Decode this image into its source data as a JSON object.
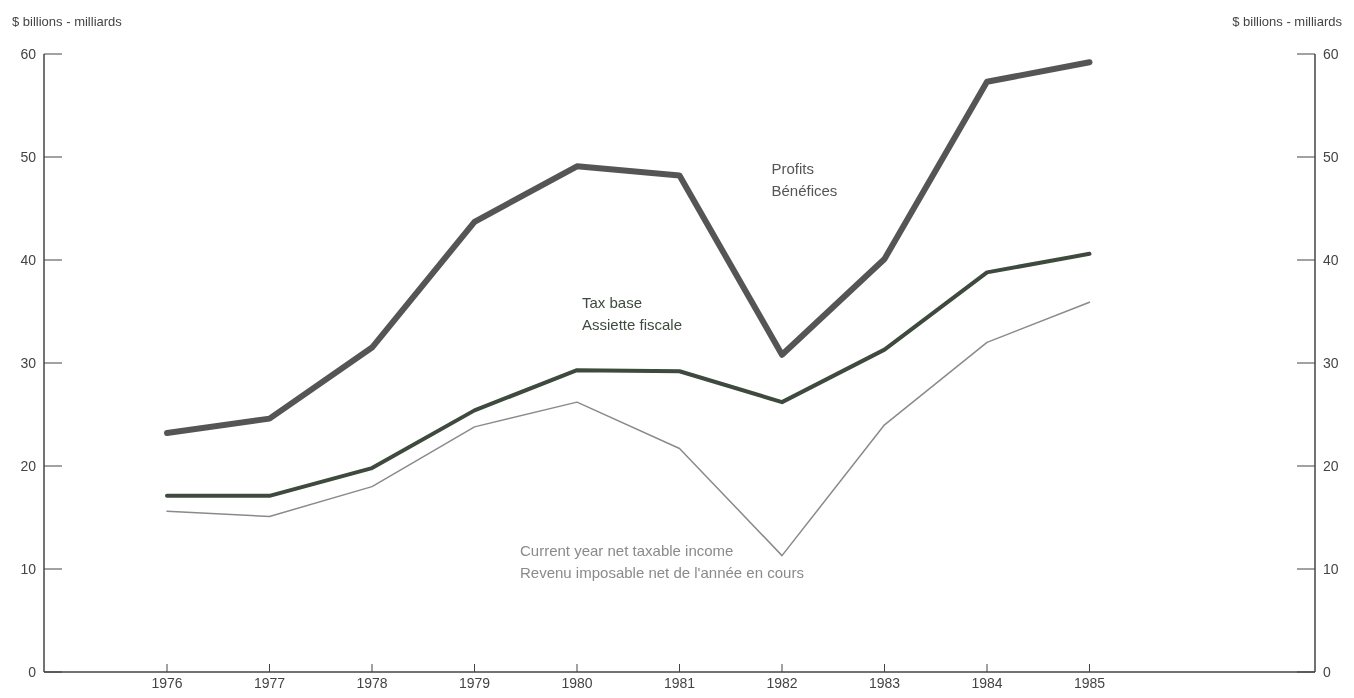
{
  "chart_data": {
    "type": "line",
    "ylabel": "$ billions - milliards",
    "y2label": "$ billions - milliards",
    "x": [
      1976,
      1977,
      1978,
      1979,
      1980,
      1981,
      1982,
      1983,
      1984,
      1985
    ],
    "xlim": [
      1974.8,
      1987.2
    ],
    "xticks": [
      1976,
      1977,
      1978,
      1979,
      1980,
      1981,
      1982,
      1983,
      1984,
      1985
    ],
    "ylim": [
      0,
      60
    ],
    "yticks": [
      0,
      10,
      20,
      30,
      40,
      50,
      60
    ],
    "y2lim": [
      0,
      60
    ],
    "y2ticks": [
      0,
      10,
      20,
      30,
      40,
      50,
      60
    ],
    "grid": false,
    "line_style": "solid",
    "series": [
      {
        "name": "Profits\nBénéfices",
        "color": "#555555",
        "values": [
          23.2,
          24.6,
          31.5,
          43.7,
          49.1,
          48.2,
          30.8,
          40.1,
          57.3,
          59.2
        ]
      },
      {
        "name": "Tax base\nAssiette fiscale",
        "color": "#3d4a3d",
        "values": [
          17.1,
          17.1,
          19.8,
          25.4,
          29.3,
          29.2,
          26.2,
          31.3,
          38.8,
          40.6
        ]
      },
      {
        "name": "Current year net taxable income\nRevenu imposable net de l'année en cours",
        "color": "#8a8a8a",
        "values": [
          15.6,
          15.1,
          18.0,
          23.8,
          26.2,
          21.7,
          11.3,
          24.0,
          32.0,
          35.9
        ]
      }
    ]
  }
}
